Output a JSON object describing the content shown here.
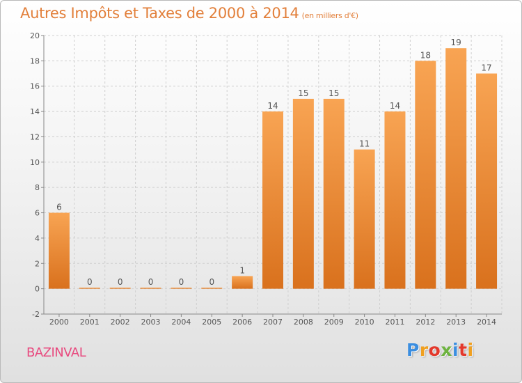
{
  "header": {
    "title": "Autres Impôts et Taxes de 2000 à 2014",
    "subtitle": "(en milliers d'€)"
  },
  "commune": "BAZINVAL",
  "logo": {
    "letters": [
      "P",
      "r",
      "o",
      "x",
      "i",
      "t",
      "i"
    ],
    "colors": [
      "#3b8ee0",
      "#f0a020",
      "#e3392c",
      "#6db33f",
      "#3b8ee0",
      "#e3392c",
      "#f0a020"
    ]
  },
  "chart_data": {
    "type": "bar",
    "categories": [
      "2000",
      "2001",
      "2002",
      "2003",
      "2004",
      "2005",
      "2006",
      "2007",
      "2008",
      "2009",
      "2010",
      "2011",
      "2012",
      "2013",
      "2014"
    ],
    "values": [
      6,
      0,
      0,
      0,
      0,
      0,
      1,
      14,
      15,
      15,
      11,
      14,
      18,
      19,
      17
    ],
    "data_labels": [
      "6",
      "0",
      "0",
      "0",
      "0",
      "0",
      "1",
      "14",
      "15",
      "15",
      "11",
      "14",
      "18",
      "19",
      "17"
    ],
    "ylim": [
      -2,
      20
    ],
    "yticks": [
      -2,
      0,
      2,
      4,
      6,
      8,
      10,
      12,
      14,
      16,
      18,
      20
    ],
    "grid": true,
    "colors": {
      "bar_top": "#f8a453",
      "bar_bottom": "#d9711d",
      "grid": "#cfcfcf",
      "axis_text": "#555555"
    }
  }
}
